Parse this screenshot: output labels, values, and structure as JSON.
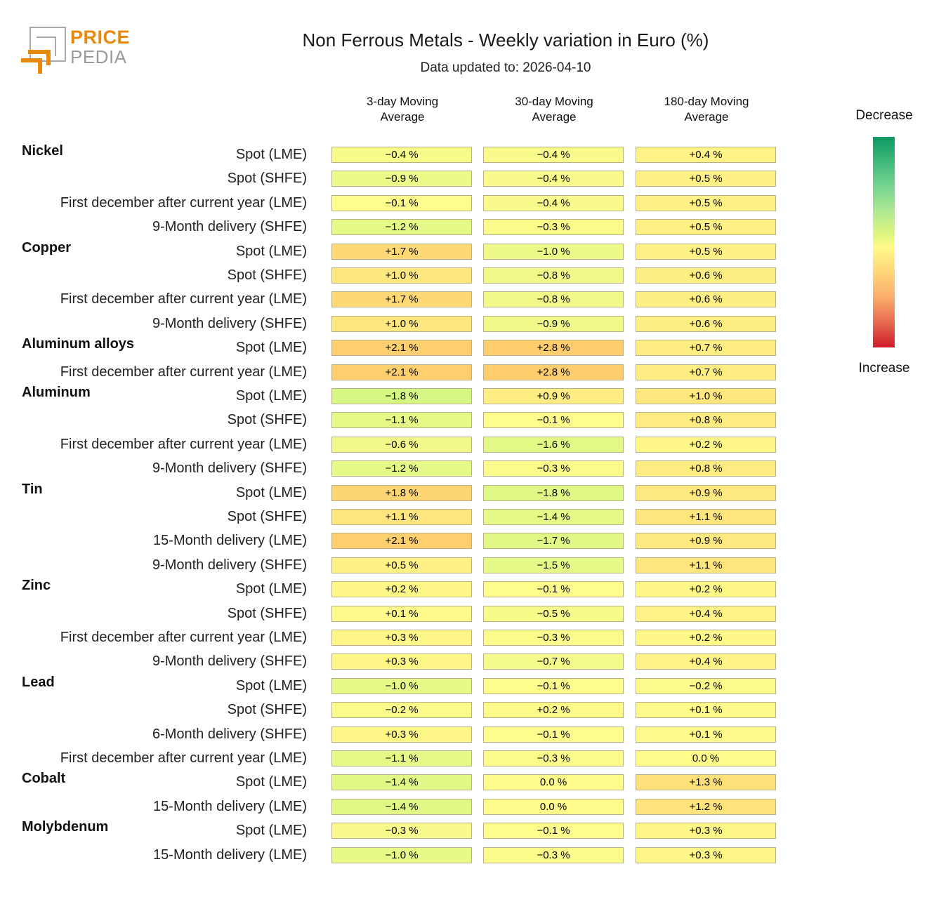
{
  "header": {
    "logo_top": "PRICE",
    "logo_bottom": "PEDIA",
    "title": "Non Ferrous Metals - Weekly variation in Euro (%)",
    "subtitle": "Data updated to: 2026-04-10"
  },
  "legend": {
    "top_label": "Decrease",
    "bottom_label": "Increase",
    "colors": [
      "#0b9a62",
      "#aee891",
      "#fffb8a",
      "#fbad6b",
      "#d11b2c"
    ]
  },
  "chart_data": {
    "type": "heatmap",
    "title": "Non Ferrous Metals - Weekly variation in Euro (%)",
    "subtitle": "Data updated to: 2026-04-10",
    "columns": [
      "3-day Moving\nAverage",
      "30-day Moving\nAverage",
      "180-day Moving\nAverage"
    ],
    "unit": "%",
    "legend": {
      "top": "Decrease",
      "bottom": "Increase",
      "placement": "right"
    },
    "groups": [
      {
        "name": "Nickel",
        "rows": [
          {
            "label": "Spot (LME)",
            "values": [
              "-0.4",
              "-0.4",
              "+0.4"
            ]
          },
          {
            "label": "Spot (SHFE)",
            "values": [
              "-0.9",
              "-0.4",
              "+0.5"
            ]
          },
          {
            "label": "First december after current year (LME)",
            "values": [
              "-0.1",
              "-0.4",
              "+0.5"
            ]
          },
          {
            "label": "9-Month delivery (SHFE)",
            "values": [
              "-1.2",
              "-0.3",
              "+0.5"
            ]
          }
        ]
      },
      {
        "name": "Copper",
        "rows": [
          {
            "label": "Spot (LME)",
            "values": [
              "+1.7",
              "-1.0",
              "+0.5"
            ]
          },
          {
            "label": "Spot (SHFE)",
            "values": [
              "+1.0",
              "-0.8",
              "+0.6"
            ]
          },
          {
            "label": "First december after current year (LME)",
            "values": [
              "+1.7",
              "-0.8",
              "+0.6"
            ]
          },
          {
            "label": "9-Month delivery (SHFE)",
            "values": [
              "+1.0",
              "-0.9",
              "+0.6"
            ]
          }
        ]
      },
      {
        "name": "Aluminum alloys",
        "rows": [
          {
            "label": "Spot (LME)",
            "values": [
              "+2.1",
              "+2.8",
              "+0.7"
            ]
          },
          {
            "label": "First december after current year (LME)",
            "values": [
              "+2.1",
              "+2.8",
              "+0.7"
            ]
          }
        ]
      },
      {
        "name": "Aluminum",
        "rows": [
          {
            "label": "Spot (LME)",
            "values": [
              "-1.8",
              "+0.9",
              "+1.0"
            ]
          },
          {
            "label": "Spot (SHFE)",
            "values": [
              "-1.1",
              "-0.1",
              "+0.8"
            ]
          },
          {
            "label": "First december after current year (LME)",
            "values": [
              "-0.6",
              "-1.6",
              "+0.2"
            ]
          },
          {
            "label": "9-Month delivery (SHFE)",
            "values": [
              "-1.2",
              "-0.3",
              "+0.8"
            ]
          }
        ]
      },
      {
        "name": "Tin",
        "rows": [
          {
            "label": "Spot (LME)",
            "values": [
              "+1.8",
              "-1.8",
              "+0.9"
            ]
          },
          {
            "label": "Spot (SHFE)",
            "values": [
              "+1.1",
              "-1.4",
              "+1.1"
            ]
          },
          {
            "label": "15-Month delivery (LME)",
            "values": [
              "+2.1",
              "-1.7",
              "+0.9"
            ]
          },
          {
            "label": "9-Month delivery (SHFE)",
            "values": [
              "+0.5",
              "-1.5",
              "+1.1"
            ]
          }
        ]
      },
      {
        "name": "Zinc",
        "rows": [
          {
            "label": "Spot (LME)",
            "values": [
              "+0.2",
              "-0.1",
              "+0.2"
            ]
          },
          {
            "label": "Spot (SHFE)",
            "values": [
              "+0.1",
              "-0.5",
              "+0.4"
            ]
          },
          {
            "label": "First december after current year (LME)",
            "values": [
              "+0.3",
              "-0.3",
              "+0.2"
            ]
          },
          {
            "label": "9-Month delivery (SHFE)",
            "values": [
              "+0.3",
              "-0.7",
              "+0.4"
            ]
          }
        ]
      },
      {
        "name": "Lead",
        "rows": [
          {
            "label": "Spot (LME)",
            "values": [
              "-1.0",
              "-0.1",
              "-0.2"
            ]
          },
          {
            "label": "Spot (SHFE)",
            "values": [
              "-0.2",
              "+0.2",
              "+0.1"
            ]
          },
          {
            "label": "6-Month delivery (SHFE)",
            "values": [
              "+0.3",
              "-0.1",
              "+0.1"
            ]
          },
          {
            "label": "First december after current year (LME)",
            "values": [
              "-1.1",
              "-0.3",
              "0.0"
            ]
          }
        ]
      },
      {
        "name": "Cobalt",
        "rows": [
          {
            "label": "Spot (LME)",
            "values": [
              "-1.4",
              "0.0",
              "+1.3"
            ]
          },
          {
            "label": "15-Month delivery (LME)",
            "values": [
              "-1.4",
              "0.0",
              "+1.2"
            ]
          }
        ]
      },
      {
        "name": "Molybdenum",
        "rows": [
          {
            "label": "Spot (LME)",
            "values": [
              "-0.3",
              "-0.1",
              "+0.3"
            ]
          },
          {
            "label": "15-Month delivery (LME)",
            "values": [
              "-1.0",
              "-0.3",
              "+0.3"
            ]
          }
        ]
      }
    ]
  }
}
